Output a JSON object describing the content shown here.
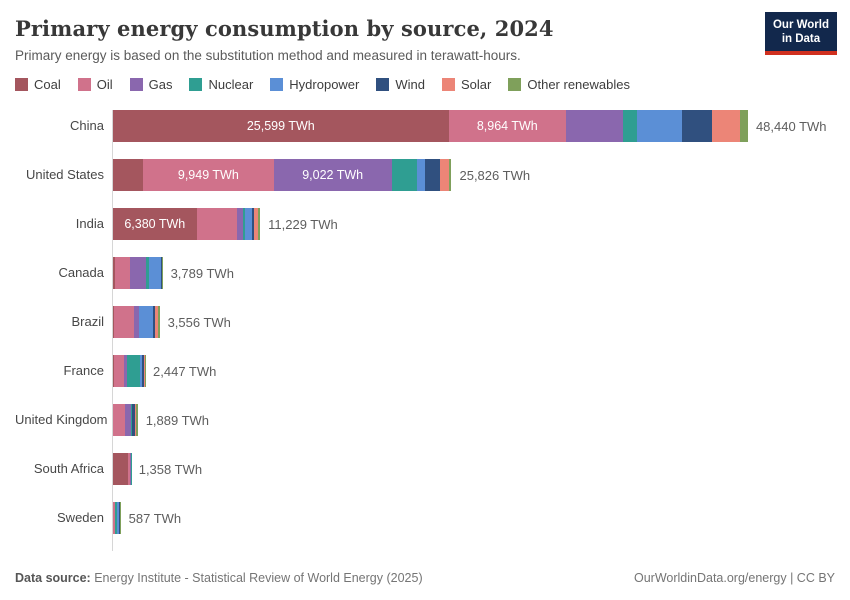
{
  "header": {
    "title": "Primary energy consumption by source, 2024",
    "subtitle": "Primary energy is based on the substitution method and measured in terawatt-hours."
  },
  "logo": {
    "line1": "Our World",
    "line2": "in Data"
  },
  "footer": {
    "datasource_label": "Data source:",
    "datasource_value": "Energy Institute - Statistical Review of World Energy (2025)",
    "license": "OurWorldinData.org/energy | CC BY"
  },
  "chart_data": {
    "type": "bar",
    "orientation": "horizontal-stacked",
    "title": "Primary energy consumption by source, 2024",
    "subtitle": "Primary energy is based on the substitution method and measured in terawatt-hours.",
    "unit": "TWh",
    "xlabel": "",
    "ylabel": "",
    "grid": false,
    "legend_position": "top",
    "categories": [
      "China",
      "United States",
      "India",
      "Canada",
      "Brazil",
      "France",
      "United Kingdom",
      "South Africa",
      "Sweden"
    ],
    "series": [
      {
        "name": "Coal",
        "color": "#A4565E",
        "values": [
          25599,
          2300,
          6380,
          130,
          100,
          40,
          25,
          1180,
          10
        ]
      },
      {
        "name": "Oil",
        "color": "#D0728B",
        "values": [
          8964,
          9949,
          3060,
          1170,
          1490,
          780,
          900,
          150,
          125
        ]
      },
      {
        "name": "Gas",
        "color": "#8A67AE",
        "values": [
          4330,
          9022,
          500,
          1250,
          380,
          280,
          450,
          15,
          5
        ]
      },
      {
        "name": "Nuclear",
        "color": "#2F9E92",
        "values": [
          1060,
          1950,
          120,
          230,
          40,
          950,
          90,
          10,
          130
        ]
      },
      {
        "name": "Hydropower",
        "color": "#5B8FD6",
        "values": [
          3430,
          600,
          510,
          870,
          1020,
          190,
          15,
          1,
          160
        ]
      },
      {
        "name": "Wind",
        "color": "#30507F",
        "values": [
          2290,
          1150,
          200,
          100,
          210,
          120,
          230,
          1,
          95
        ]
      },
      {
        "name": "Solar",
        "color": "#EC8577",
        "values": [
          2160,
          655,
          330,
          20,
          180,
          55,
          40,
          1,
          10
        ]
      },
      {
        "name": "Other renewables",
        "color": "#7FA05B",
        "values": [
          607,
          200,
          129,
          19,
          136,
          32,
          139,
          0,
          52
        ]
      }
    ],
    "totals": [
      48440,
      25826,
      11229,
      3789,
      3556,
      2447,
      1889,
      1358,
      587
    ],
    "total_labels": [
      "48,440 TWh",
      "25,826 TWh",
      "11,229 TWh",
      "3,789 TWh",
      "3,556 TWh",
      "2,447 TWh",
      "1,889 TWh",
      "1,358 TWh",
      "587 TWh"
    ],
    "segment_labels": [
      [
        "25,599 TWh",
        "8,964 TWh",
        "",
        "",
        "",
        "",
        "",
        ""
      ],
      [
        "",
        "9,949 TWh",
        "9,022 TWh",
        "",
        "",
        "",
        "",
        ""
      ],
      [
        "6,380 TWh",
        "",
        "",
        "",
        "",
        "",
        "",
        ""
      ],
      [
        "",
        "",
        "",
        "",
        "",
        "",
        "",
        ""
      ],
      [
        "",
        "",
        "",
        "",
        "",
        "",
        "",
        ""
      ],
      [
        "",
        "",
        "",
        "",
        "",
        "",
        "",
        ""
      ],
      [
        "",
        "",
        "",
        "",
        "",
        "",
        "",
        ""
      ],
      [
        "",
        "",
        "",
        "",
        "",
        "",
        "",
        ""
      ],
      [
        "",
        "",
        "",
        "",
        "",
        "",
        "",
        ""
      ]
    ]
  }
}
